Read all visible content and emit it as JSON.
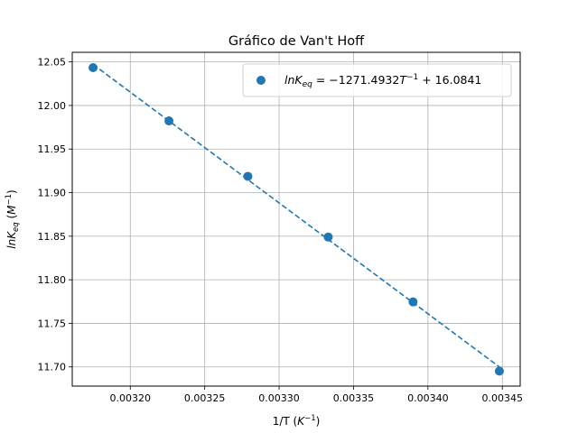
{
  "chart_data": {
    "type": "scatter",
    "title": "Gráfico de Van't Hoff",
    "xlabel": {
      "base": "1/T (",
      "var": "K",
      "sup": "−1",
      "tail": ")"
    },
    "ylabel": {
      "var": "lnK",
      "sub": "eq",
      "mid": " (",
      "unit": "M",
      "sup": "−1",
      "tail": ")"
    },
    "xlim": [
      0.003161,
      0.003462
    ],
    "ylim": [
      11.678,
      12.061
    ],
    "xticks": [
      0.0032,
      0.00325,
      0.0033,
      0.00335,
      0.0034,
      0.00345
    ],
    "xtick_labels": [
      "0.00320",
      "0.00325",
      "0.00330",
      "0.00335",
      "0.00340",
      "0.00345"
    ],
    "yticks": [
      11.7,
      11.75,
      11.8,
      11.85,
      11.9,
      11.95,
      12.0,
      12.05
    ],
    "ytick_labels": [
      "11.70",
      "11.75",
      "11.80",
      "11.85",
      "11.90",
      "11.95",
      "12.00",
      "12.05"
    ],
    "grid": true,
    "legend_position": "top-right",
    "series": [
      {
        "name": "lnK_eq = −1271.4932T^−1 + 16.0841",
        "marker": "circle",
        "x": [
          0.003175,
          0.003226,
          0.003279,
          0.003333,
          0.00339,
          0.003448
        ],
        "y": [
          12.0434,
          11.9823,
          11.9187,
          11.849,
          11.7746,
          11.6952
        ]
      }
    ],
    "fit": {
      "slope": -1271.4932,
      "intercept": 16.0841,
      "x_range": [
        0.003175,
        0.003448
      ],
      "style": "dashed"
    },
    "legend": {
      "var": "lnK",
      "sub": "eq",
      "eq": " = −1271.4932",
      "tvar": "T",
      "tsup": "−1",
      "tail": " + 16.0841"
    },
    "colors": {
      "series": "#1f77b4",
      "grid": "#b0b0b0",
      "axes": "#000000"
    }
  }
}
